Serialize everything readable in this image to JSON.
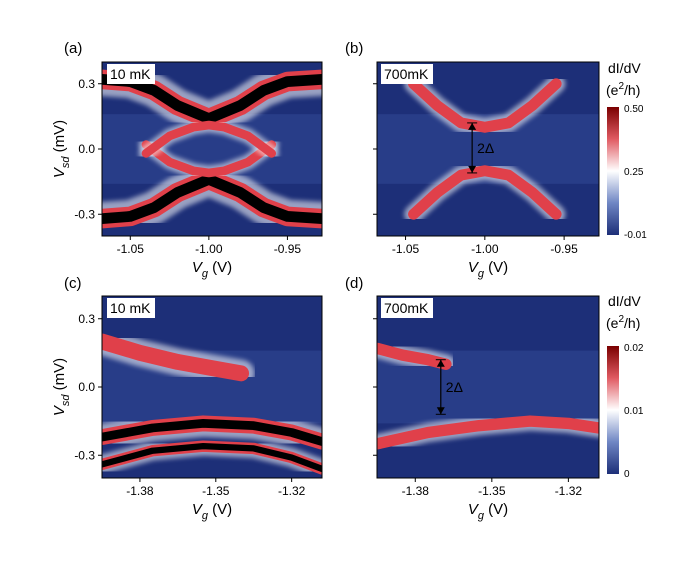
{
  "colors": {
    "low": "#1d2f78",
    "mid": "#ffffff",
    "high": "#7a0000",
    "featureRed": "#e0404a",
    "saturatedBlack": "#000000"
  },
  "chart_data": [
    {
      "type": "heatmap",
      "panel_label": "(a)",
      "temperature_label": "10 mK",
      "xlabel": "V",
      "xlabel_sub": "g",
      "xlabel_unit": " (V)",
      "ylabel": "V",
      "ylabel_sub": "sd",
      "ylabel_unit": " (mV)",
      "xlim": [
        -1.068,
        -0.928
      ],
      "ylim": [
        -0.4,
        0.4
      ],
      "xticks": [
        {
          "v": -1.05,
          "label": "-1.05"
        },
        {
          "v": -1.0,
          "label": "-1.00"
        },
        {
          "v": -0.95,
          "label": "-0.95"
        }
      ],
      "yticks": [
        {
          "v": 0.3,
          "label": "0.3"
        },
        {
          "v": 0.0,
          "label": "0.0"
        },
        {
          "v": -0.3,
          "label": "-0.3"
        }
      ],
      "show_xlabel": true,
      "show_ylabel": true,
      "features": [
        {
          "x": [
            -1.068,
            -1.05,
            -1.035,
            -1.02,
            -1.0,
            -0.98,
            -0.965,
            -0.95,
            -0.928
          ],
          "y": [
            0.32,
            0.31,
            0.27,
            0.2,
            0.14,
            0.2,
            0.27,
            0.31,
            0.32
          ],
          "w": 0.09,
          "sat": true
        },
        {
          "x": [
            -1.068,
            -1.05,
            -1.035,
            -1.02,
            -1.0,
            -0.98,
            -0.965,
            -0.95,
            -0.928
          ],
          "y": [
            -0.32,
            -0.31,
            -0.27,
            -0.2,
            -0.14,
            -0.2,
            -0.27,
            -0.31,
            -0.32
          ],
          "w": 0.09,
          "sat": true
        },
        {
          "x": [
            -1.04,
            -1.025,
            -1.01,
            -1.0,
            -0.99,
            -0.975,
            -0.96
          ],
          "y": [
            0.02,
            -0.06,
            -0.1,
            -0.11,
            -0.1,
            -0.06,
            0.02
          ],
          "w": 0.04,
          "sat": false
        },
        {
          "x": [
            -1.04,
            -1.025,
            -1.01,
            -1.0,
            -0.99,
            -0.975,
            -0.96
          ],
          "y": [
            -0.02,
            0.06,
            0.1,
            0.11,
            0.1,
            0.06,
            -0.02
          ],
          "w": 0.04,
          "sat": false
        }
      ]
    },
    {
      "type": "heatmap",
      "panel_label": "(b)",
      "temperature_label": "700mK",
      "xlabel": "V",
      "xlabel_sub": "g",
      "xlabel_unit": " (V)",
      "ylabel": "",
      "ylabel_sub": "",
      "ylabel_unit": "",
      "xlim": [
        -1.068,
        -0.928
      ],
      "ylim": [
        -0.4,
        0.4
      ],
      "xticks": [
        {
          "v": -1.05,
          "label": "-1.05"
        },
        {
          "v": -1.0,
          "label": "-1.00"
        },
        {
          "v": -0.95,
          "label": "-0.95"
        }
      ],
      "yticks": [
        {
          "v": 0.3,
          "label": ""
        },
        {
          "v": 0.0,
          "label": ""
        },
        {
          "v": -0.3,
          "label": ""
        }
      ],
      "show_xlabel": true,
      "show_ylabel": false,
      "annotation": {
        "text": "2Δ",
        "x": -1.008,
        "y_top": 0.12,
        "y_bottom": -0.11
      },
      "features": [
        {
          "x": [
            -1.045,
            -1.03,
            -1.015,
            -1.0,
            -0.985,
            -0.97,
            -0.955
          ],
          "y": [
            -0.3,
            -0.2,
            -0.12,
            -0.1,
            -0.12,
            -0.2,
            -0.3
          ],
          "w": 0.05,
          "sat": false
        },
        {
          "x": [
            -1.045,
            -1.03,
            -1.015,
            -1.0,
            -0.985,
            -0.97,
            -0.955
          ],
          "y": [
            0.3,
            0.2,
            0.12,
            0.1,
            0.12,
            0.2,
            0.3
          ],
          "w": 0.05,
          "sat": false
        }
      ]
    },
    {
      "type": "heatmap",
      "panel_label": "(c)",
      "temperature_label": "10 mK",
      "xlabel": "V",
      "xlabel_sub": "g",
      "xlabel_unit": " (V)",
      "ylabel": "V",
      "ylabel_sub": "sd",
      "ylabel_unit": " (mV)",
      "xlim": [
        -1.395,
        -1.308
      ],
      "ylim": [
        -0.4,
        0.4
      ],
      "xticks": [
        {
          "v": -1.38,
          "label": "-1.38"
        },
        {
          "v": -1.35,
          "label": "-1.35"
        },
        {
          "v": -1.32,
          "label": "-1.32"
        }
      ],
      "yticks": [
        {
          "v": 0.3,
          "label": "0.3"
        },
        {
          "v": 0.0,
          "label": "0.0"
        },
        {
          "v": -0.3,
          "label": "-0.3"
        }
      ],
      "show_xlabel": true,
      "show_ylabel": true,
      "features": [
        {
          "x": [
            -1.395,
            -1.38,
            -1.365,
            -1.35,
            -1.34
          ],
          "y": [
            0.2,
            0.15,
            0.11,
            0.08,
            0.06
          ],
          "w": 0.07,
          "sat": false
        },
        {
          "x": [
            -1.395,
            -1.375,
            -1.355,
            -1.335,
            -1.32,
            -1.308
          ],
          "y": [
            -0.22,
            -0.18,
            -0.16,
            -0.17,
            -0.2,
            -0.24
          ],
          "w": 0.07,
          "sat": true
        },
        {
          "x": [
            -1.395,
            -1.375,
            -1.355,
            -1.335,
            -1.32,
            -1.308
          ],
          "y": [
            -0.34,
            -0.28,
            -0.26,
            -0.27,
            -0.31,
            -0.36
          ],
          "w": 0.05,
          "sat": true
        }
      ]
    },
    {
      "type": "heatmap",
      "panel_label": "(d)",
      "temperature_label": "700mK",
      "xlabel": "V",
      "xlabel_sub": "g",
      "xlabel_unit": " (V)",
      "ylabel": "",
      "ylabel_sub": "",
      "ylabel_unit": "",
      "xlim": [
        -1.395,
        -1.308
      ],
      "ylim": [
        -0.4,
        0.4
      ],
      "xticks": [
        {
          "v": -1.38,
          "label": "-1.38"
        },
        {
          "v": -1.35,
          "label": "-1.35"
        },
        {
          "v": -1.32,
          "label": "-1.32"
        }
      ],
      "yticks": [
        {
          "v": 0.3,
          "label": ""
        },
        {
          "v": 0.0,
          "label": ""
        },
        {
          "v": -0.3,
          "label": ""
        }
      ],
      "show_xlabel": true,
      "show_ylabel": false,
      "annotation": {
        "text": "2Δ",
        "x": -1.37,
        "y_top": 0.12,
        "y_bottom": -0.12
      },
      "features": [
        {
          "x": [
            -1.395,
            -1.385,
            -1.375,
            -1.368
          ],
          "y": [
            0.17,
            0.14,
            0.12,
            0.1
          ],
          "w": 0.05,
          "sat": false
        },
        {
          "x": [
            -1.395,
            -1.375,
            -1.355,
            -1.335,
            -1.32,
            -1.308
          ],
          "y": [
            -0.25,
            -0.2,
            -0.17,
            -0.15,
            -0.16,
            -0.18
          ],
          "w": 0.05,
          "sat": false
        }
      ]
    }
  ],
  "colorbars": [
    {
      "label_line1": "dI/dV",
      "label_line2_pre": "(e",
      "label_line2_sup": "2",
      "label_line2_post": "/h)",
      "ticks": [
        {
          "v": 0.5,
          "label": "0.50"
        },
        {
          "v": 0.25,
          "label": "0.25"
        },
        {
          "v": -0.01,
          "label": "-0.01"
        }
      ],
      "range": [
        -0.01,
        0.5
      ]
    },
    {
      "label_line1": "dI/dV",
      "label_line2_pre": "(e",
      "label_line2_sup": "2",
      "label_line2_post": "/h)",
      "ticks": [
        {
          "v": 0.02,
          "label": "0.02"
        },
        {
          "v": 0.01,
          "label": "0.01"
        },
        {
          "v": 0.0,
          "label": "0"
        }
      ],
      "range": [
        0.0,
        0.02
      ]
    }
  ]
}
